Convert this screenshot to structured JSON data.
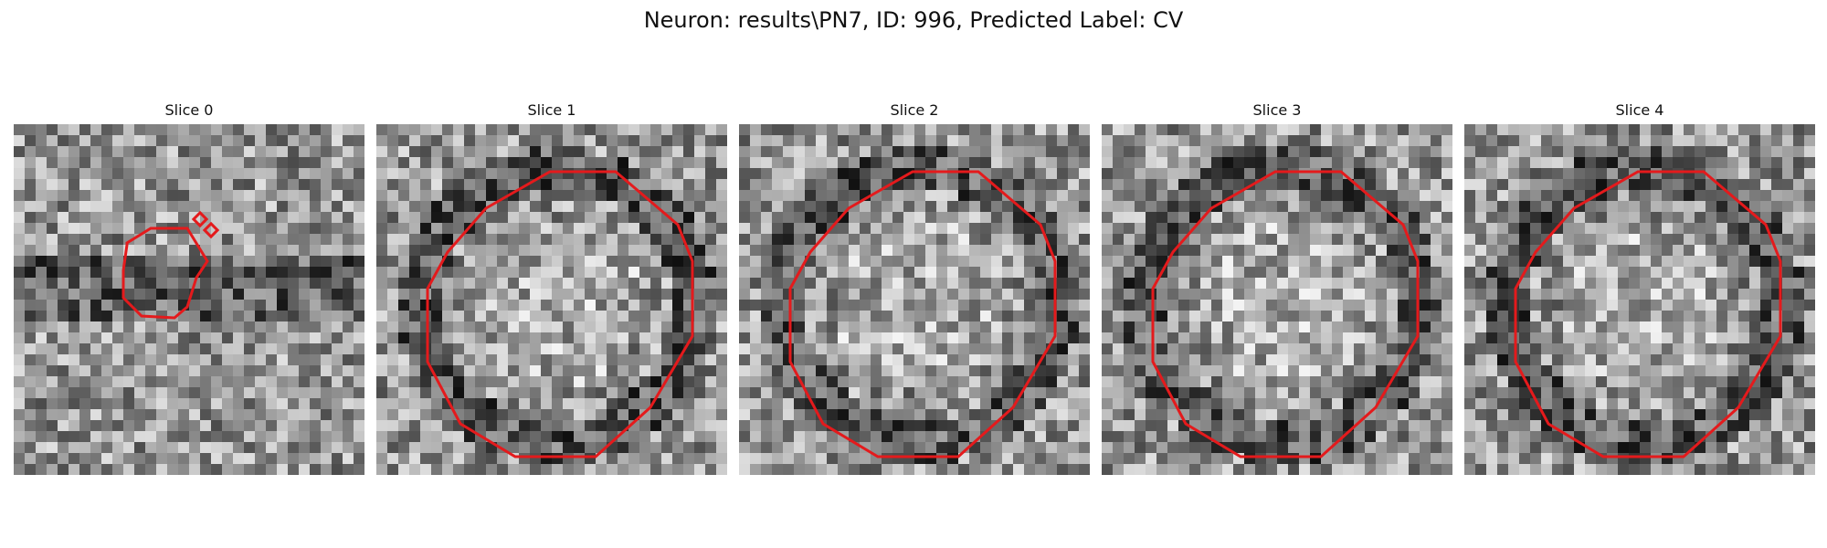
{
  "figure": {
    "title": "Neuron: results\\PN7, ID: 996, Predicted Label: CV"
  },
  "colors": {
    "contour": "#e41a1c",
    "background": "#ffffff"
  },
  "panels": [
    {
      "title": "Slice 0",
      "seed": 11,
      "contour": "small-blob"
    },
    {
      "title": "Slice 1",
      "seed": 23,
      "contour": "large-octagon"
    },
    {
      "title": "Slice 2",
      "seed": 37,
      "contour": "large-octagon"
    },
    {
      "title": "Slice 3",
      "seed": 41,
      "contour": "large-octagon"
    },
    {
      "title": "Slice 4",
      "seed": 59,
      "contour": "large-octagon"
    }
  ]
}
